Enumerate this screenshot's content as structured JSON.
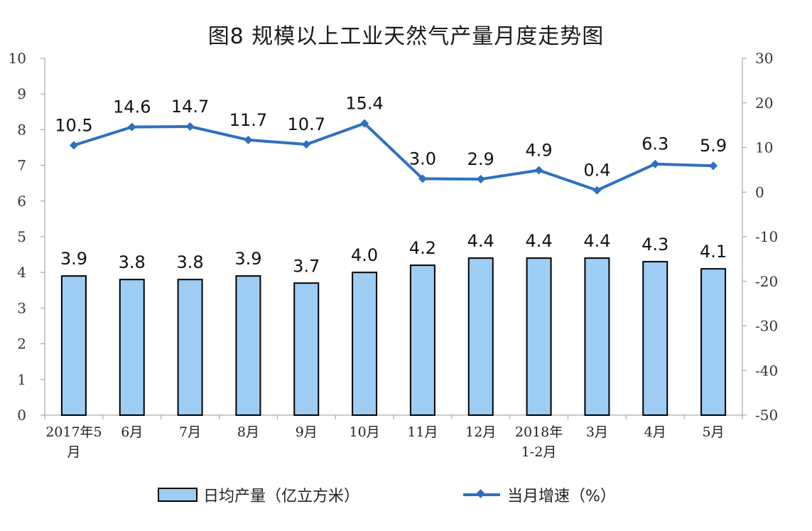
{
  "chart_data": {
    "type": "bar+line",
    "title": "图8  规模以上工业天然气产量月度走势图",
    "categories": [
      [
        "2017年5",
        "月"
      ],
      [
        "6月"
      ],
      [
        "7月"
      ],
      [
        "8月"
      ],
      [
        "9月"
      ],
      [
        "10月"
      ],
      [
        "11月"
      ],
      [
        "12月"
      ],
      [
        "2018年",
        "1-2月"
      ],
      [
        "3月"
      ],
      [
        "4月"
      ],
      [
        "5月"
      ]
    ],
    "series": [
      {
        "name": "日均产量（亿立方米）",
        "type": "bar",
        "axis": "left",
        "color": "#9dcdf3",
        "values": [
          3.9,
          3.8,
          3.8,
          3.9,
          3.7,
          4.0,
          4.2,
          4.4,
          4.4,
          4.4,
          4.3,
          4.1
        ],
        "labels": [
          "3.9",
          "3.8",
          "3.8",
          "3.9",
          "3.7",
          "4.0",
          "4.2",
          "4.4",
          "4.4",
          "4.4",
          "4.3",
          "4.1"
        ]
      },
      {
        "name": "当月增速（%）",
        "type": "line",
        "axis": "right",
        "color": "#2f6fbf",
        "values": [
          10.5,
          14.6,
          14.7,
          11.7,
          10.7,
          15.4,
          3.0,
          2.9,
          4.9,
          0.4,
          6.3,
          5.9
        ],
        "labels": [
          "10.5",
          "14.6",
          "14.7",
          "11.7",
          "10.7",
          "15.4",
          "3.0",
          "2.9",
          "4.9",
          "0.4",
          "6.3",
          "5.9"
        ]
      }
    ],
    "left_axis": {
      "min": 0,
      "max": 10,
      "ticks": [
        "0",
        "1",
        "2",
        "3",
        "4",
        "5",
        "6",
        "7",
        "8",
        "9",
        "10"
      ]
    },
    "right_axis": {
      "min": -50,
      "max": 30,
      "ticks": [
        "-50",
        "-40",
        "-30",
        "-20",
        "-10",
        "0",
        "10",
        "20",
        "30"
      ]
    }
  },
  "legend": {
    "bar_label": "日均产量（亿立方米）",
    "line_label": "当月增速（%）"
  }
}
